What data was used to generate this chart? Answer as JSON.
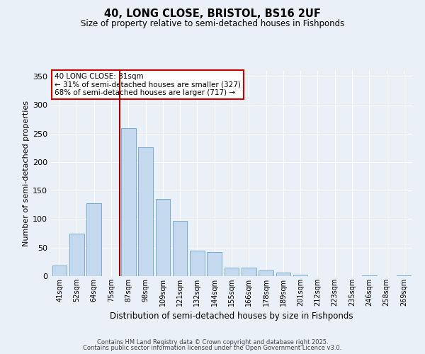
{
  "title": "40, LONG CLOSE, BRISTOL, BS16 2UF",
  "subtitle": "Size of property relative to semi-detached houses in Fishponds",
  "xlabel": "Distribution of semi-detached houses by size in Fishponds",
  "ylabel": "Number of semi-detached properties",
  "categories": [
    "41sqm",
    "52sqm",
    "64sqm",
    "75sqm",
    "87sqm",
    "98sqm",
    "109sqm",
    "121sqm",
    "132sqm",
    "144sqm",
    "155sqm",
    "166sqm",
    "178sqm",
    "189sqm",
    "201sqm",
    "212sqm",
    "223sqm",
    "235sqm",
    "246sqm",
    "258sqm",
    "269sqm"
  ],
  "values": [
    19,
    75,
    128,
    0,
    259,
    226,
    135,
    97,
    45,
    42,
    15,
    15,
    10,
    6,
    2,
    0,
    0,
    0,
    1,
    0,
    1
  ],
  "bar_color": "#c5d9ee",
  "bar_edge_color": "#7aadd4",
  "bg_color": "#eaf0f8",
  "plot_bg_color": "#eaf0f8",
  "grid_color": "#ffffff",
  "vline_x_index": 4,
  "vline_color": "#990000",
  "annotation_title": "40 LONG CLOSE: 81sqm",
  "annotation_line1": "← 31% of semi-detached houses are smaller (327)",
  "annotation_line2": "68% of semi-detached houses are larger (717) →",
  "annotation_box_facecolor": "#ffffff",
  "annotation_box_edgecolor": "#cc0000",
  "ylim": [
    0,
    360
  ],
  "yticks": [
    0,
    50,
    100,
    150,
    200,
    250,
    300,
    350
  ],
  "footer1": "Contains HM Land Registry data © Crown copyright and database right 2025.",
  "footer2": "Contains public sector information licensed under the Open Government Licence v3.0."
}
